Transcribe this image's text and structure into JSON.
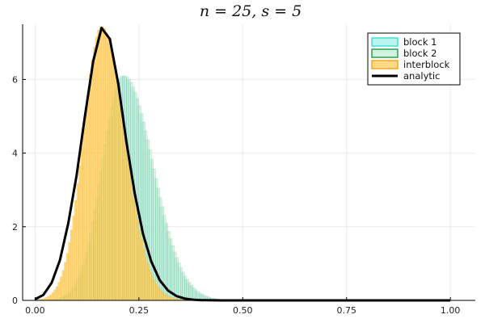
{
  "chart_data": {
    "type": "histogram",
    "title": "n = 25, s = 5",
    "xlabel": "",
    "ylabel": "",
    "xlim": [
      -0.03,
      1.06
    ],
    "ylim": [
      0,
      7.5
    ],
    "xticks": [
      0.0,
      0.25,
      0.5,
      0.75,
      1.0
    ],
    "xtick_labels": [
      "0.00",
      "0.25",
      "0.50",
      "0.75",
      "1.00"
    ],
    "yticks": [
      0,
      2,
      4,
      6
    ],
    "ytick_labels": [
      "0",
      "2",
      "4",
      "6"
    ],
    "grid": true,
    "legend_position": "top-right",
    "bin_width": 0.005,
    "series": [
      {
        "name": "block 1",
        "kind": "histogram",
        "fill": "#9df0ea",
        "stroke": "#40e0d0",
        "density": {
          "mode": 0.21,
          "peak": 6.1,
          "sigma_left": 0.05,
          "sigma_right": 0.07
        }
      },
      {
        "name": "block 2",
        "kind": "histogram",
        "fill": "#bfead3",
        "stroke": "#2e9e50",
        "density": {
          "mode": 0.215,
          "peak": 6.1,
          "sigma_left": 0.05,
          "sigma_right": 0.07
        }
      },
      {
        "name": "interblock",
        "kind": "histogram",
        "fill": "#ffc94f",
        "stroke": "#f5a623",
        "density": {
          "mode": 0.16,
          "peak": 7.45,
          "sigma_left": 0.044,
          "sigma_right": 0.056
        }
      },
      {
        "name": "analytic",
        "kind": "line",
        "stroke": "#000000",
        "points": [
          [
            0.0,
            0.03
          ],
          [
            0.02,
            0.15
          ],
          [
            0.04,
            0.48
          ],
          [
            0.06,
            1.1
          ],
          [
            0.08,
            2.1
          ],
          [
            0.1,
            3.4
          ],
          [
            0.12,
            5.0
          ],
          [
            0.14,
            6.5
          ],
          [
            0.16,
            7.4
          ],
          [
            0.18,
            7.1
          ],
          [
            0.2,
            5.9
          ],
          [
            0.22,
            4.3
          ],
          [
            0.24,
            2.9
          ],
          [
            0.26,
            1.8
          ],
          [
            0.28,
            1.05
          ],
          [
            0.3,
            0.55
          ],
          [
            0.32,
            0.27
          ],
          [
            0.34,
            0.12
          ],
          [
            0.36,
            0.05
          ],
          [
            0.38,
            0.02
          ],
          [
            0.4,
            0.006
          ],
          [
            0.45,
            0.0
          ],
          [
            0.5,
            0.0
          ],
          [
            0.75,
            0.0
          ],
          [
            1.0,
            0.0
          ]
        ]
      }
    ]
  }
}
